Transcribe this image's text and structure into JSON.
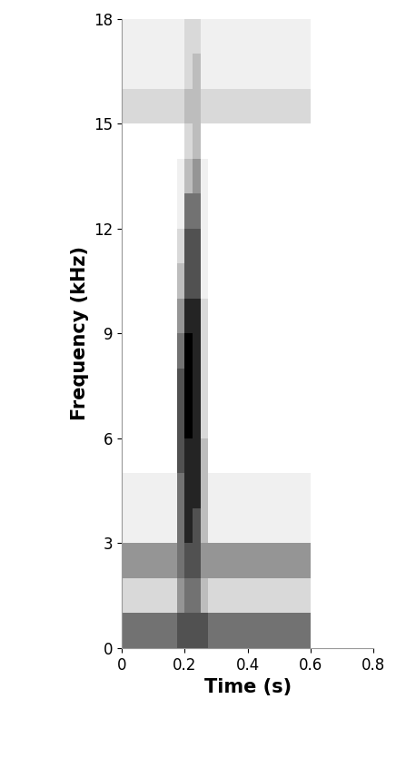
{
  "chart_data": {
    "type": "heatmap",
    "x_label": "Time (s)",
    "y_label": "Frequency (kHz)",
    "xlim": [
      0,
      0.8
    ],
    "xticks": [
      0,
      0.2,
      0.4,
      0.6,
      0.8
    ],
    "ylim": [
      0,
      18
    ],
    "yticks": [
      0,
      3,
      6,
      9,
      12,
      15,
      18
    ],
    "grid": false,
    "color": "Greys",
    "time_bins": [
      0,
      0.025,
      0.05,
      0.075,
      0.1,
      0.125,
      0.15,
      0.175,
      0.2,
      0.225,
      0.25,
      0.275,
      0.3,
      0.325,
      0.35,
      0.375,
      0.4,
      0.425,
      0.45,
      0.475,
      0.5,
      0.525,
      0.55,
      0.575,
      0.6
    ],
    "frequency_bins": [
      0,
      1,
      2,
      3,
      4,
      5,
      6,
      7,
      8,
      9,
      10,
      11,
      12,
      13,
      14,
      15,
      16,
      17,
      18
    ],
    "cells": [
      [
        7,
        7,
        7,
        7,
        7,
        7,
        7,
        8,
        8,
        8,
        8,
        7,
        7,
        7,
        7,
        7,
        7,
        7,
        7,
        7,
        7,
        7,
        7,
        7
      ],
      [
        4,
        4,
        4,
        4,
        4,
        4,
        4,
        6,
        7,
        7,
        5,
        4,
        4,
        4,
        4,
        4,
        4,
        4,
        4,
        4,
        4,
        4,
        4,
        4
      ],
      [
        6,
        6,
        6,
        6,
        6,
        6,
        6,
        7,
        8,
        8,
        6,
        6,
        6,
        6,
        6,
        6,
        6,
        6,
        6,
        6,
        6,
        6,
        6,
        6
      ],
      [
        3,
        3,
        3,
        3,
        3,
        3,
        3,
        7,
        9,
        8,
        5,
        3,
        3,
        3,
        3,
        3,
        3,
        3,
        3,
        3,
        3,
        3,
        3,
        3
      ],
      [
        3,
        3,
        3,
        3,
        3,
        3,
        3,
        7,
        9,
        9,
        5,
        3,
        3,
        3,
        3,
        3,
        3,
        3,
        3,
        3,
        3,
        3,
        3,
        3
      ],
      [
        2,
        2,
        2,
        2,
        2,
        2,
        2,
        8,
        9,
        9,
        5,
        2,
        2,
        2,
        2,
        2,
        2,
        2,
        2,
        2,
        2,
        2,
        2,
        2
      ],
      [
        2,
        2,
        2,
        2,
        2,
        2,
        2,
        8,
        10,
        9,
        4,
        2,
        2,
        2,
        2,
        2,
        2,
        2,
        2,
        2,
        2,
        2,
        2,
        2
      ],
      [
        2,
        2,
        2,
        2,
        2,
        2,
        2,
        8,
        10,
        9,
        4,
        2,
        2,
        2,
        2,
        2,
        2,
        2,
        2,
        2,
        2,
        2,
        2,
        2
      ],
      [
        2,
        2,
        2,
        2,
        2,
        2,
        2,
        7,
        10,
        9,
        4,
        2,
        2,
        2,
        2,
        2,
        2,
        2,
        2,
        2,
        2,
        2,
        2,
        2
      ],
      [
        2,
        2,
        2,
        2,
        2,
        2,
        2,
        6,
        9,
        9,
        4,
        2,
        2,
        2,
        2,
        2,
        2,
        2,
        2,
        2,
        2,
        2,
        2,
        2
      ],
      [
        2,
        2,
        2,
        2,
        2,
        2,
        2,
        5,
        8,
        8,
        3,
        2,
        2,
        2,
        2,
        2,
        2,
        2,
        2,
        2,
        2,
        2,
        2,
        2
      ],
      [
        2,
        2,
        2,
        2,
        2,
        2,
        2,
        4,
        8,
        8,
        3,
        2,
        2,
        2,
        2,
        2,
        2,
        2,
        2,
        2,
        2,
        2,
        2,
        2
      ],
      [
        2,
        2,
        2,
        2,
        2,
        2,
        2,
        3,
        7,
        7,
        3,
        2,
        2,
        2,
        2,
        2,
        2,
        2,
        2,
        2,
        2,
        2,
        2,
        2
      ],
      [
        2,
        2,
        2,
        2,
        2,
        2,
        2,
        3,
        5,
        6,
        3,
        2,
        2,
        2,
        2,
        2,
        2,
        2,
        2,
        2,
        2,
        2,
        2,
        2
      ],
      [
        2,
        2,
        2,
        2,
        2,
        2,
        2,
        2,
        4,
        5,
        2,
        2,
        2,
        2,
        2,
        2,
        2,
        2,
        2,
        2,
        2,
        2,
        2,
        2
      ],
      [
        4,
        4,
        4,
        4,
        4,
        4,
        4,
        4,
        5,
        5,
        4,
        4,
        4,
        4,
        4,
        4,
        4,
        4,
        4,
        4,
        4,
        4,
        4,
        4
      ],
      [
        3,
        3,
        3,
        3,
        3,
        3,
        3,
        3,
        4,
        5,
        3,
        3,
        3,
        3,
        3,
        3,
        3,
        3,
        3,
        3,
        3,
        3,
        3,
        3
      ],
      [
        3,
        3,
        3,
        3,
        3,
        3,
        3,
        3,
        4,
        4,
        3,
        3,
        3,
        3,
        3,
        3,
        3,
        3,
        3,
        3,
        3,
        3,
        3,
        3
      ]
    ]
  }
}
